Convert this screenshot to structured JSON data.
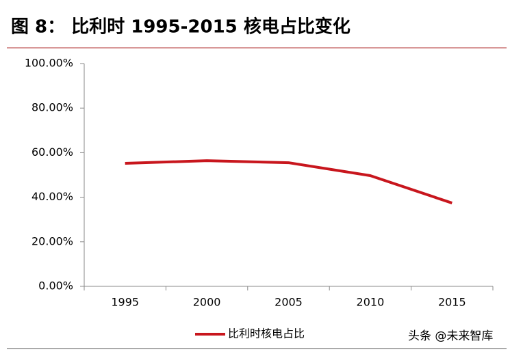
{
  "chart_data": {
    "type": "line",
    "title": "图 8： 比利时 1995-2015 核电占比变化",
    "categories": [
      "1995",
      "2000",
      "2005",
      "2010",
      "2015"
    ],
    "series": [
      {
        "name": "比利时核电占比",
        "color": "#c8161d",
        "values": [
          55.2,
          56.4,
          55.5,
          49.7,
          37.4
        ]
      }
    ],
    "ylim": [
      0,
      100
    ],
    "yticks": [
      {
        "value": 0,
        "label": "0.00%"
      },
      {
        "value": 20,
        "label": "20.00%"
      },
      {
        "value": 40,
        "label": "40.00%"
      },
      {
        "value": 60,
        "label": "60.00%"
      },
      {
        "value": 80,
        "label": "80.00%"
      },
      {
        "value": 100,
        "label": "100.00%"
      }
    ],
    "grid": false,
    "legend": "bottom",
    "watermark": "头条 @未来智库"
  }
}
